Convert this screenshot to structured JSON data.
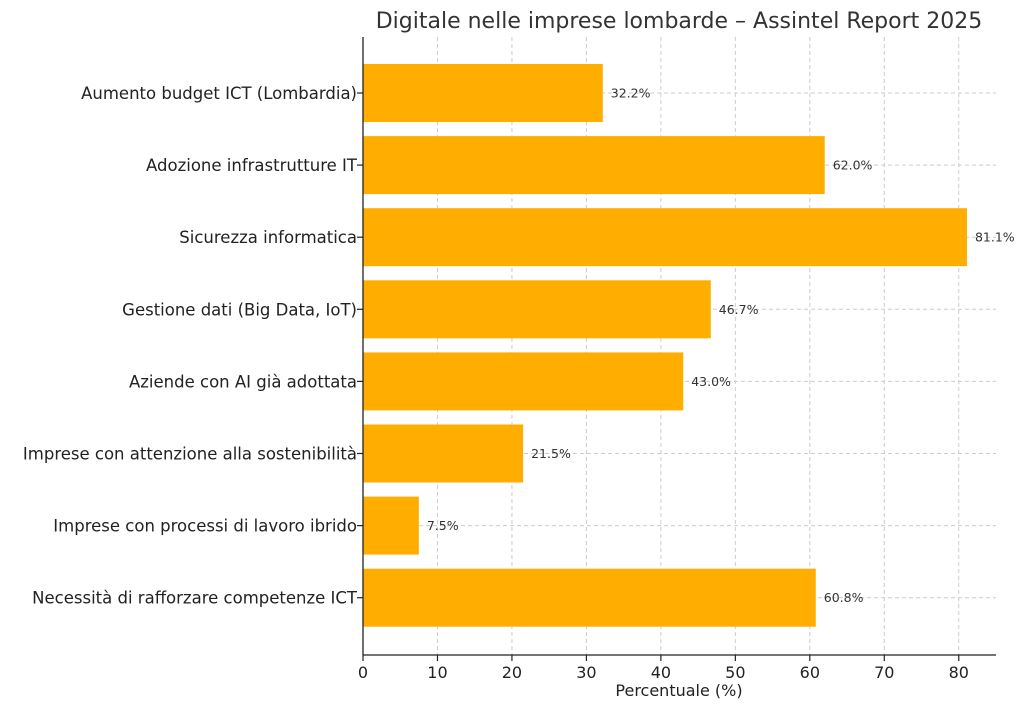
{
  "chart_data": {
    "type": "bar",
    "orientation": "horizontal",
    "title": "Digitale nelle imprese lombarde – Assintel Report 2025",
    "xlabel": "Percentuale (%)",
    "ylabel": "",
    "xlim": [
      0,
      85
    ],
    "xticks": [
      0,
      10,
      20,
      30,
      40,
      50,
      60,
      70,
      80
    ],
    "grid": true,
    "bar_color": "#FFAE00",
    "categories": [
      "Aumento budget ICT (Lombardia)",
      "Adozione infrastrutture IT",
      "Sicurezza informatica",
      "Gestione dati (Big Data, IoT)",
      "Aziende con AI già adottata",
      "Imprese con attenzione alla sostenibilità",
      "Imprese con processi di lavoro ibrido",
      "Necessità di rafforzare competenze ICT"
    ],
    "values": [
      32.2,
      62.0,
      81.1,
      46.7,
      43.0,
      21.5,
      7.5,
      60.8
    ],
    "value_labels": [
      "32.2%",
      "62.0%",
      "81.1%",
      "46.7%",
      "43.0%",
      "21.5%",
      "7.5%",
      "60.8%"
    ]
  }
}
